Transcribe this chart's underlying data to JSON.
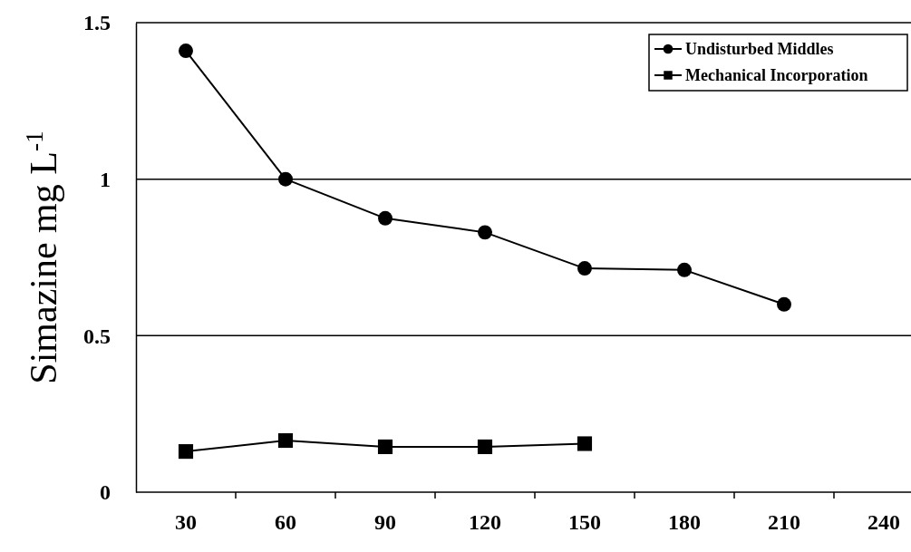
{
  "chart_data": {
    "type": "line",
    "ylabel": "Simazine mg L$^{-1}$",
    "categories": [
      "30",
      "60",
      "90",
      "120",
      "150",
      "180",
      "210",
      "240"
    ],
    "series": [
      {
        "name": "Undisturbed Middles",
        "color": "#000000",
        "marker": "circle",
        "values": [
          1.41,
          1.0,
          0.875,
          0.83,
          0.715,
          0.71,
          0.6,
          null
        ]
      },
      {
        "name": "Mechanical Incorporation",
        "color": "#000000",
        "marker": "square",
        "values": [
          0.13,
          0.165,
          0.145,
          0.145,
          0.155,
          null,
          null,
          null
        ]
      }
    ],
    "ylim": [
      0,
      1.5
    ],
    "yticks": [
      0,
      0.5,
      1,
      1.5
    ],
    "grid": "y",
    "legend": "top right",
    "line_style": "solid"
  }
}
